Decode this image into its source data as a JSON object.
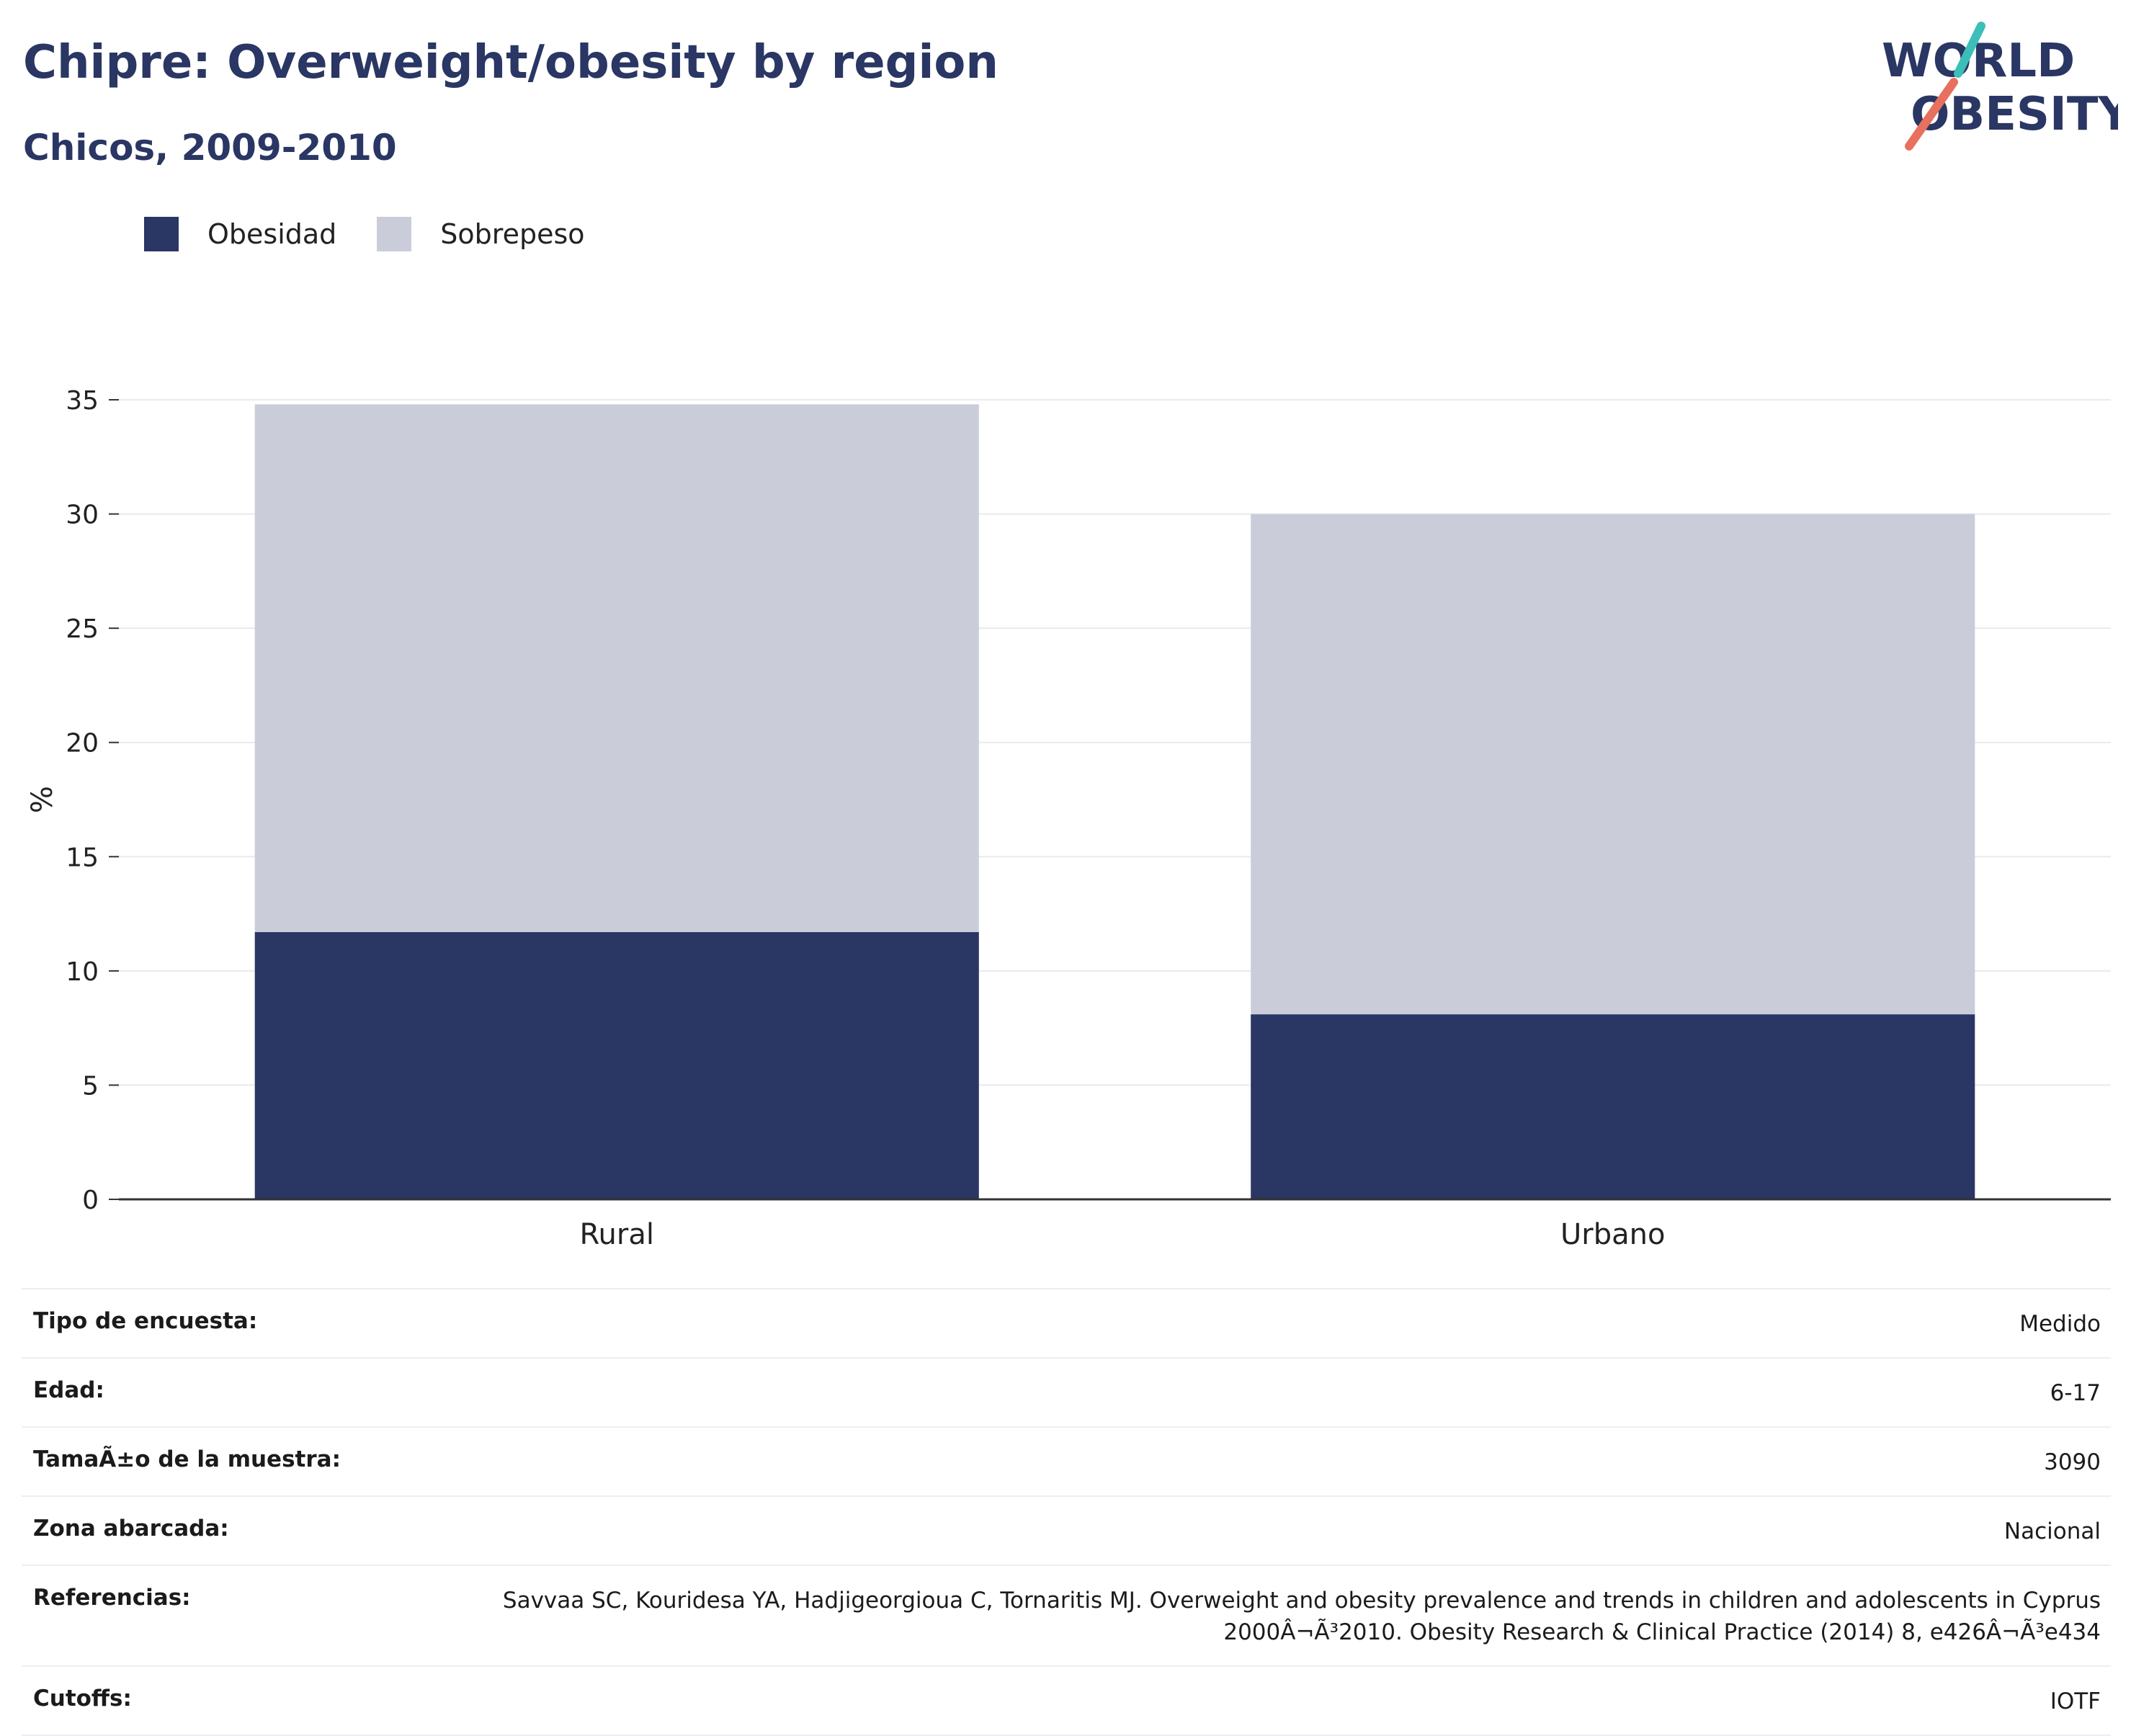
{
  "header": {
    "title": "Chipre: Overweight/obesity by region",
    "subtitle": "Chicos, 2009-2010"
  },
  "logo": {
    "line1": "WORLD",
    "line2": "OBESITY",
    "colors": {
      "text": "#2a3663",
      "slash_top": "#3bbfb8",
      "slash_bottom": "#e8705e"
    }
  },
  "colors": {
    "obesity": "#2a3663",
    "overweight": "#cacdd9",
    "grid": "#e9eaee",
    "axis": "#333333"
  },
  "chart_data": {
    "type": "bar",
    "stacked": true,
    "categories": [
      "Rural",
      "Urbano"
    ],
    "series": [
      {
        "name": "Obesidad",
        "values": [
          11.7,
          8.1
        ]
      },
      {
        "name": "Sobrepeso",
        "values": [
          23.1,
          21.9
        ]
      }
    ],
    "ylabel": "%",
    "ylim": [
      0,
      35
    ],
    "yticks": [
      "0",
      "5",
      "10",
      "15",
      "20",
      "25",
      "30",
      "35"
    ],
    "grid": true,
    "legend_position": "top-left"
  },
  "info_table": [
    {
      "label": "Tipo de encuesta:",
      "value": "Medido"
    },
    {
      "label": "Edad:",
      "value": "6-17"
    },
    {
      "label": "TamaÃ±o de la muestra:",
      "value": "3090"
    },
    {
      "label": "Zona abarcada:",
      "value": "Nacional"
    },
    {
      "label": "Referencias:",
      "value": "Savvaa SC, Kouridesa YA, Hadjigeorgioua C, Tornaritis MJ. Overweight and obesity prevalence and trends in children and adolescents in Cyprus 2000Â¬Ã³2010. Obesity Research & Clinical Practice (2014) 8, e426Â¬Ã³e434"
    },
    {
      "label": "Cutoffs:",
      "value": "IOTF"
    }
  ]
}
